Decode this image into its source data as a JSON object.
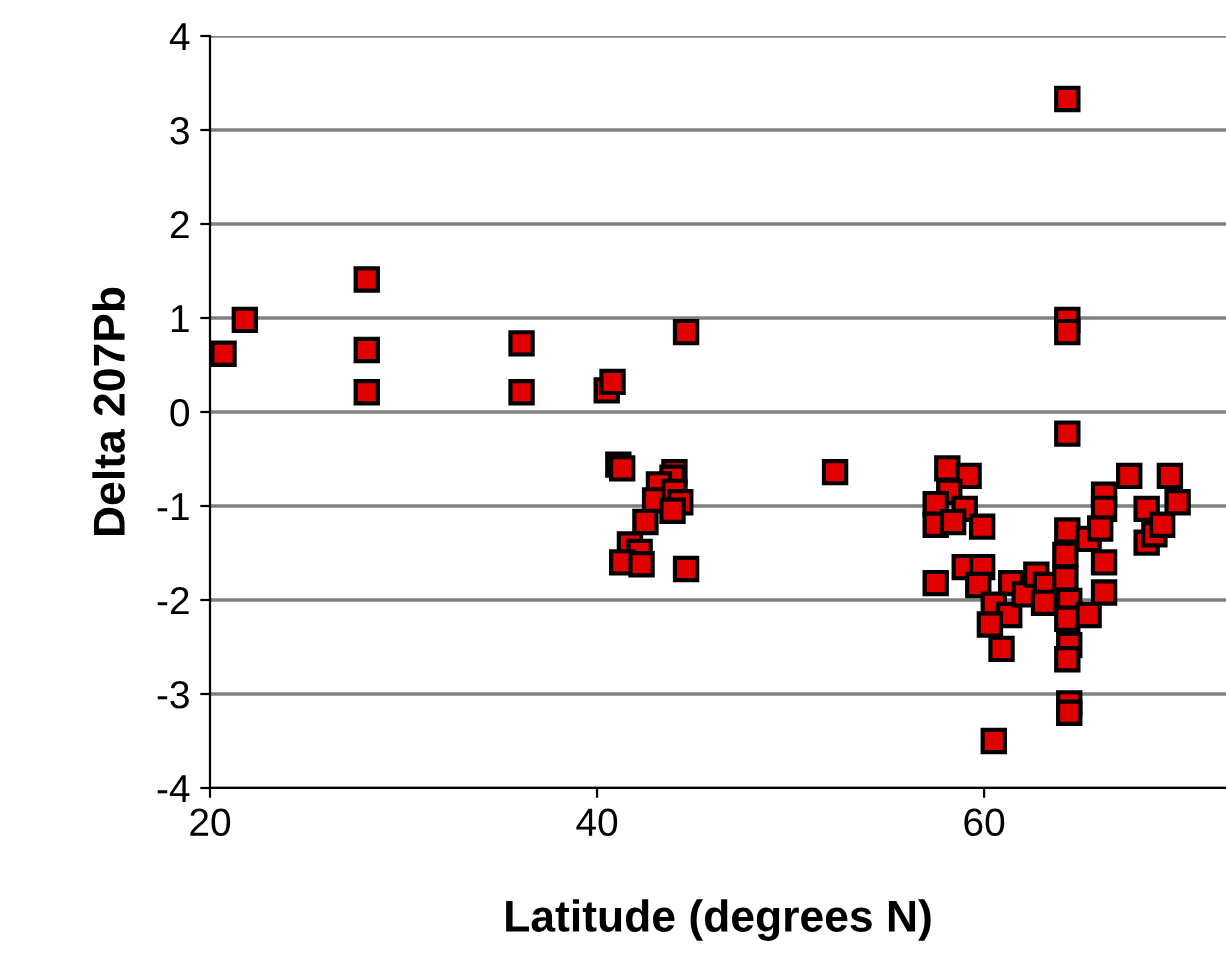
{
  "chart_data": {
    "type": "scatter",
    "xlabel": "Latitude (degrees N)",
    "ylabel": "Delta 207Pb",
    "xlim": [
      20,
      72.5
    ],
    "ylim": [
      -4,
      4
    ],
    "xticks": [
      20,
      40,
      60
    ],
    "yticks": [
      -4,
      -3,
      -2,
      -1,
      0,
      1,
      2,
      3,
      4
    ],
    "grid": "y",
    "marker": "square",
    "legend": false,
    "series": [
      {
        "color": "#e00000",
        "x": [
          20.7,
          21.8,
          28.1,
          28.1,
          28.1,
          36.1,
          36.1,
          40.5,
          40.8,
          44.6,
          41.1,
          41.3,
          52.3,
          44.0,
          43.9,
          43.2,
          43.0,
          44.0,
          44.3,
          43.9,
          42.5,
          41.7,
          42.2,
          41.3,
          42.3,
          44.6,
          58.1,
          59.2,
          58.2,
          57.5,
          59.0,
          57.5,
          58.4,
          59.9,
          59.0,
          59.9,
          57.5,
          59.7,
          61.4,
          60.5,
          61.3,
          60.3,
          60.9,
          62.1,
          62.7,
          63.2,
          63.1,
          64.3,
          64.2,
          64.2,
          64.4,
          64.3,
          64.4,
          64.3,
          64.4,
          64.4,
          65.4,
          65.4,
          66.2,
          66.2,
          66.0,
          66.2,
          66.2,
          67.5,
          68.4,
          68.4,
          68.8,
          69.2,
          69.6,
          70.0,
          60.5,
          64.3,
          64.3,
          64.3,
          64.3
        ],
        "values": [
          0.62,
          0.98,
          1.41,
          0.66,
          0.21,
          0.73,
          0.21,
          0.23,
          0.32,
          0.85,
          -0.56,
          -0.6,
          -0.64,
          -0.64,
          -0.7,
          -0.77,
          -0.94,
          -0.85,
          -0.96,
          -1.05,
          -1.17,
          -1.41,
          -1.49,
          -1.6,
          -1.62,
          -1.67,
          -0.6,
          -0.68,
          -0.85,
          -0.98,
          -1.03,
          -1.2,
          -1.17,
          -1.22,
          -1.65,
          -1.65,
          -1.82,
          -1.84,
          -1.82,
          -2.05,
          -2.16,
          -2.26,
          -2.52,
          -1.94,
          -1.73,
          -1.84,
          -2.03,
          -1.26,
          -1.52,
          -1.77,
          -2.01,
          -2.2,
          -2.48,
          -2.63,
          -3.1,
          -3.2,
          -1.35,
          -2.16,
          -0.88,
          -1.03,
          -1.24,
          -1.6,
          -1.92,
          -0.68,
          -1.03,
          -1.39,
          -1.3,
          -1.2,
          -0.68,
          -0.96,
          -3.5,
          3.33,
          0.98,
          0.85,
          -0.23
        ]
      }
    ]
  }
}
